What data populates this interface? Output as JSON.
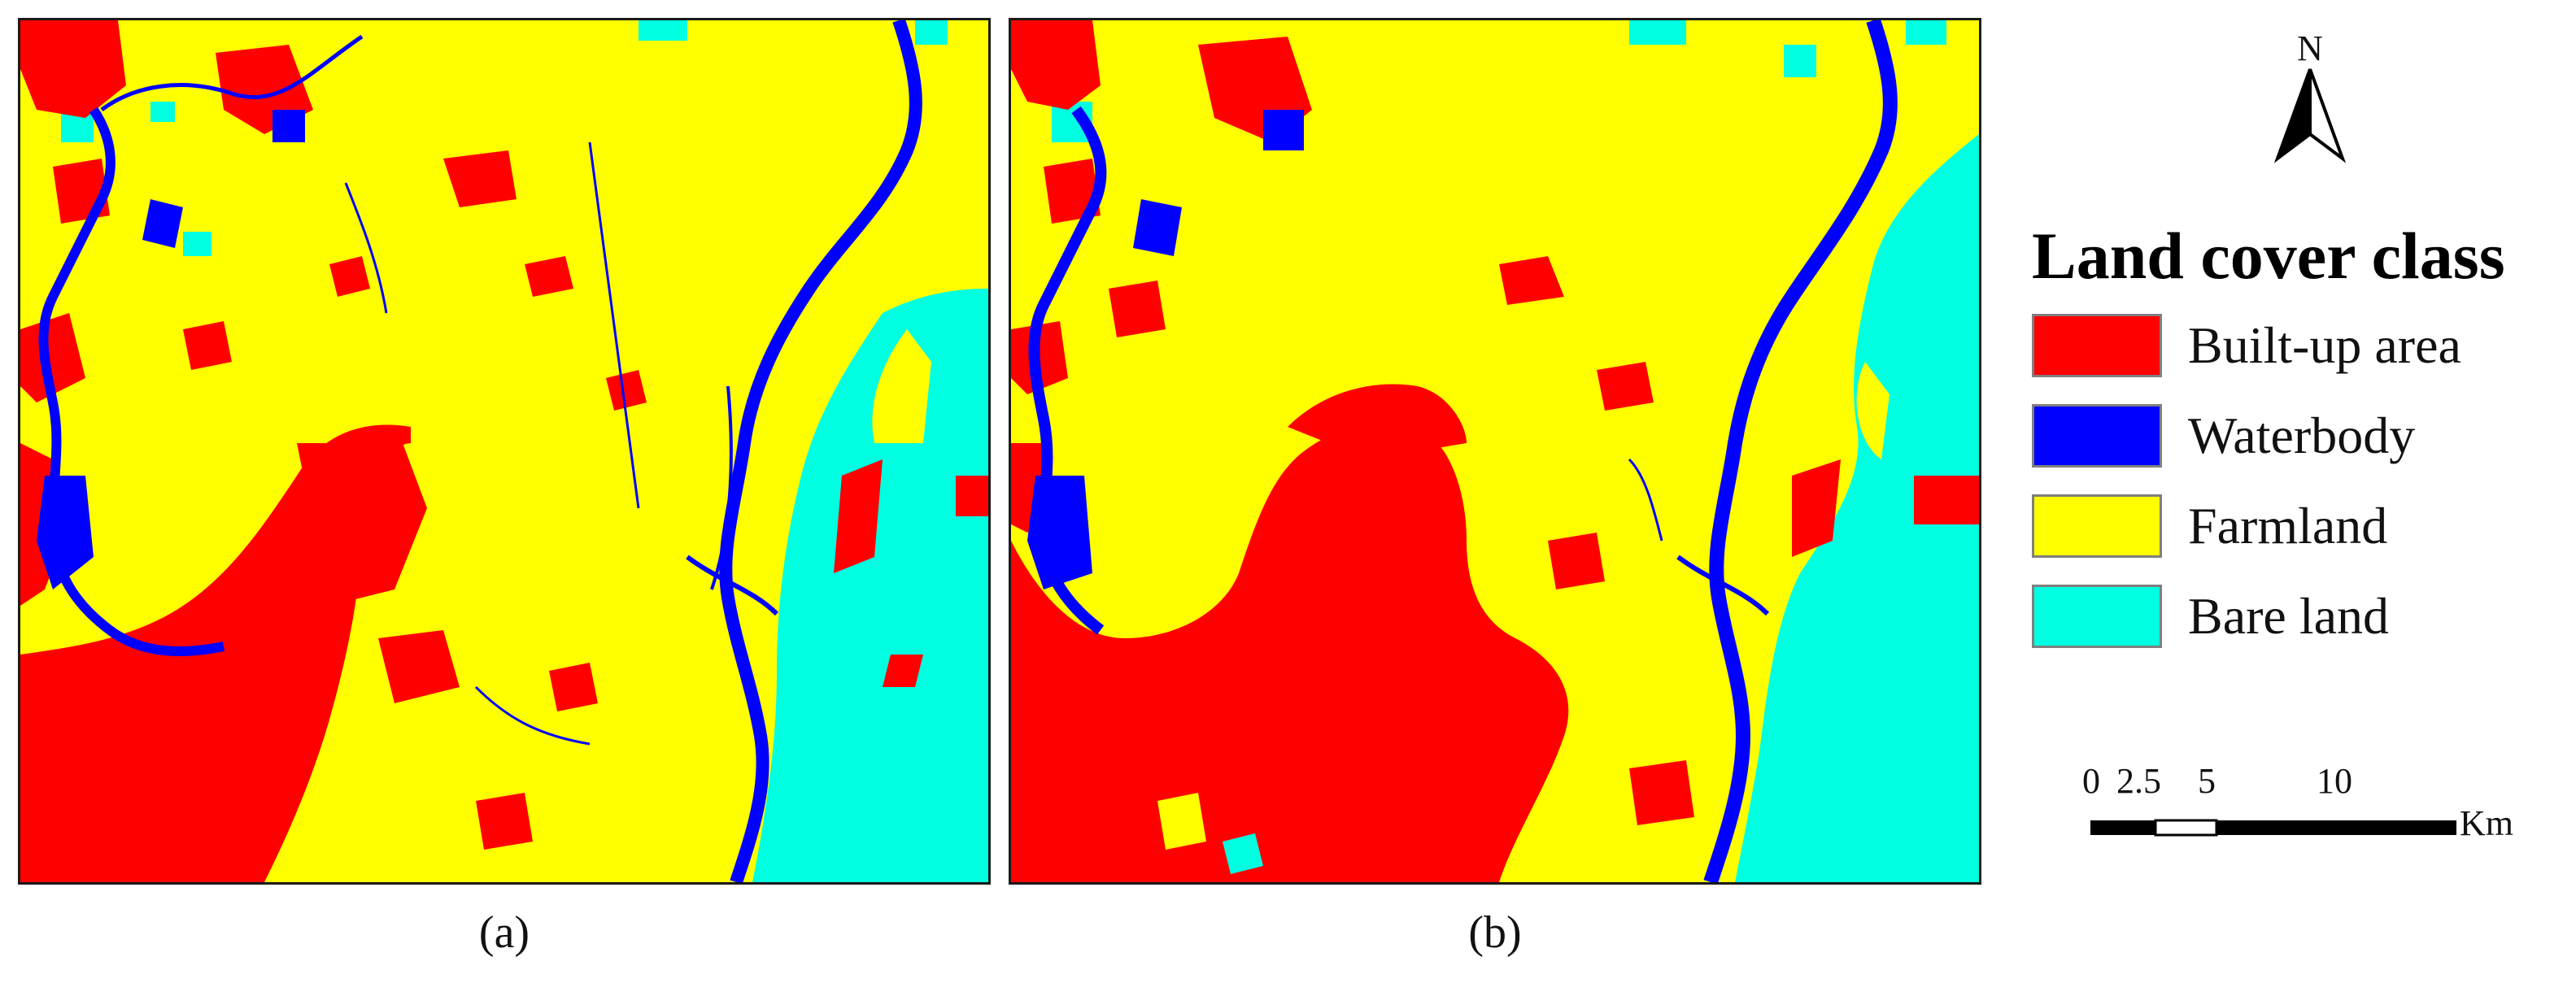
{
  "panels": [
    {
      "id": "a",
      "caption": "(a)"
    },
    {
      "id": "b",
      "caption": "(b)"
    }
  ],
  "north_arrow": {
    "label": "N"
  },
  "legend": {
    "title": "Land cover class",
    "items": [
      {
        "label": "Built-up area",
        "color": "#ff0000"
      },
      {
        "label": "Waterbody",
        "color": "#0000ff"
      },
      {
        "label": "Farmland",
        "color": "#ffff00"
      },
      {
        "label": "Bare land",
        "color": "#00ffe0"
      }
    ]
  },
  "scale_bar": {
    "ticks": [
      "0",
      "2.5",
      "5",
      "10"
    ],
    "unit": "Km"
  }
}
